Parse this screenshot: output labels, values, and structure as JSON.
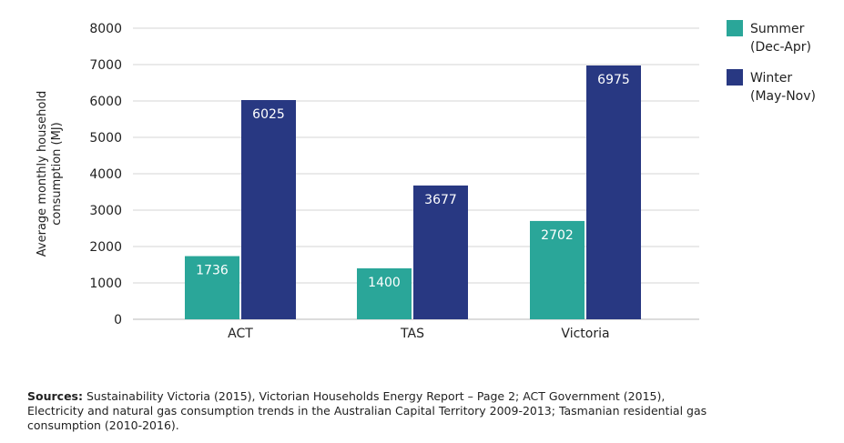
{
  "chart_data": {
    "type": "bar",
    "categories": [
      "ACT",
      "TAS",
      "Victoria"
    ],
    "series": [
      {
        "name": "Summer\n(Dec-Apr)",
        "values": [
          1736,
          1400,
          2702
        ],
        "color": "#2aa699"
      },
      {
        "name": "Winter\n(May-Nov)",
        "values": [
          6025,
          3677,
          6975
        ],
        "color": "#283882"
      }
    ],
    "data_labels": {
      "summer": [
        "1736",
        "1400",
        "2702"
      ],
      "winter": [
        "6025",
        "3677",
        "6975"
      ]
    },
    "ylabel": "Average monthly household consumption (MJ)",
    "ylabel_lines": [
      "Average monthly household",
      "consumption (MJ)"
    ],
    "ylim": [
      0,
      8000
    ],
    "yticks": [
      "0",
      "1000",
      "2000",
      "3000",
      "4000",
      "5000",
      "6000",
      "7000",
      "8000"
    ],
    "grid": true,
    "legend_position": "top-right"
  },
  "sources": {
    "lead": "Sources:",
    "text": " Sustainability Victoria (2015), Victorian Households Energy Report – Page 2; ACT Government (2015), Electricity and natural gas consumption trends in the Australian Capital Territory 2009-2013; Tasmanian residential gas consumption (2010-2016)."
  }
}
